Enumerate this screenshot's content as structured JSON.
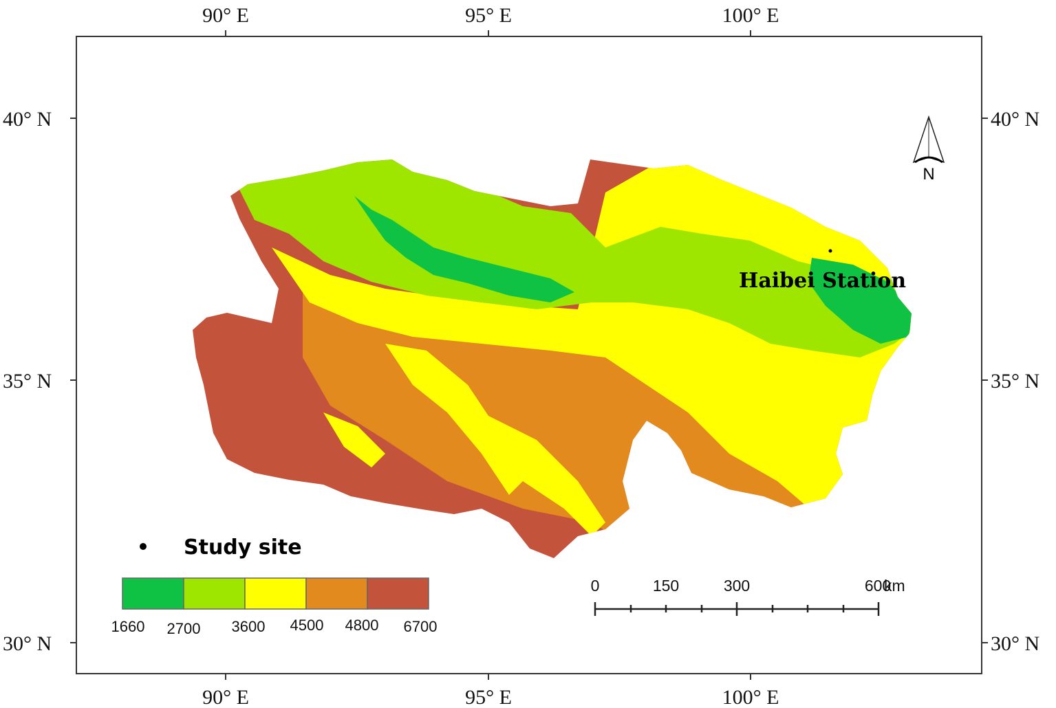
{
  "map": {
    "longitude_ticks": [
      "90° E",
      "95° E",
      "100° E"
    ],
    "latitude_ticks": [
      "40° N",
      "35° N",
      "30° N"
    ],
    "station_label": "Haibei Station",
    "north_arrow_label": "N",
    "legend": {
      "site_label": "Study site",
      "elevation_breaks": [
        "1660",
        "2700",
        "3600",
        "4500",
        "4800",
        "6700"
      ],
      "class_colors": [
        "#10c244",
        "#9ee600",
        "#ffff00",
        "#e38a1e",
        "#c4533c"
      ]
    },
    "scale_bar": {
      "labels": [
        "0",
        "150",
        "300",
        "600"
      ],
      "unit": "km"
    }
  }
}
